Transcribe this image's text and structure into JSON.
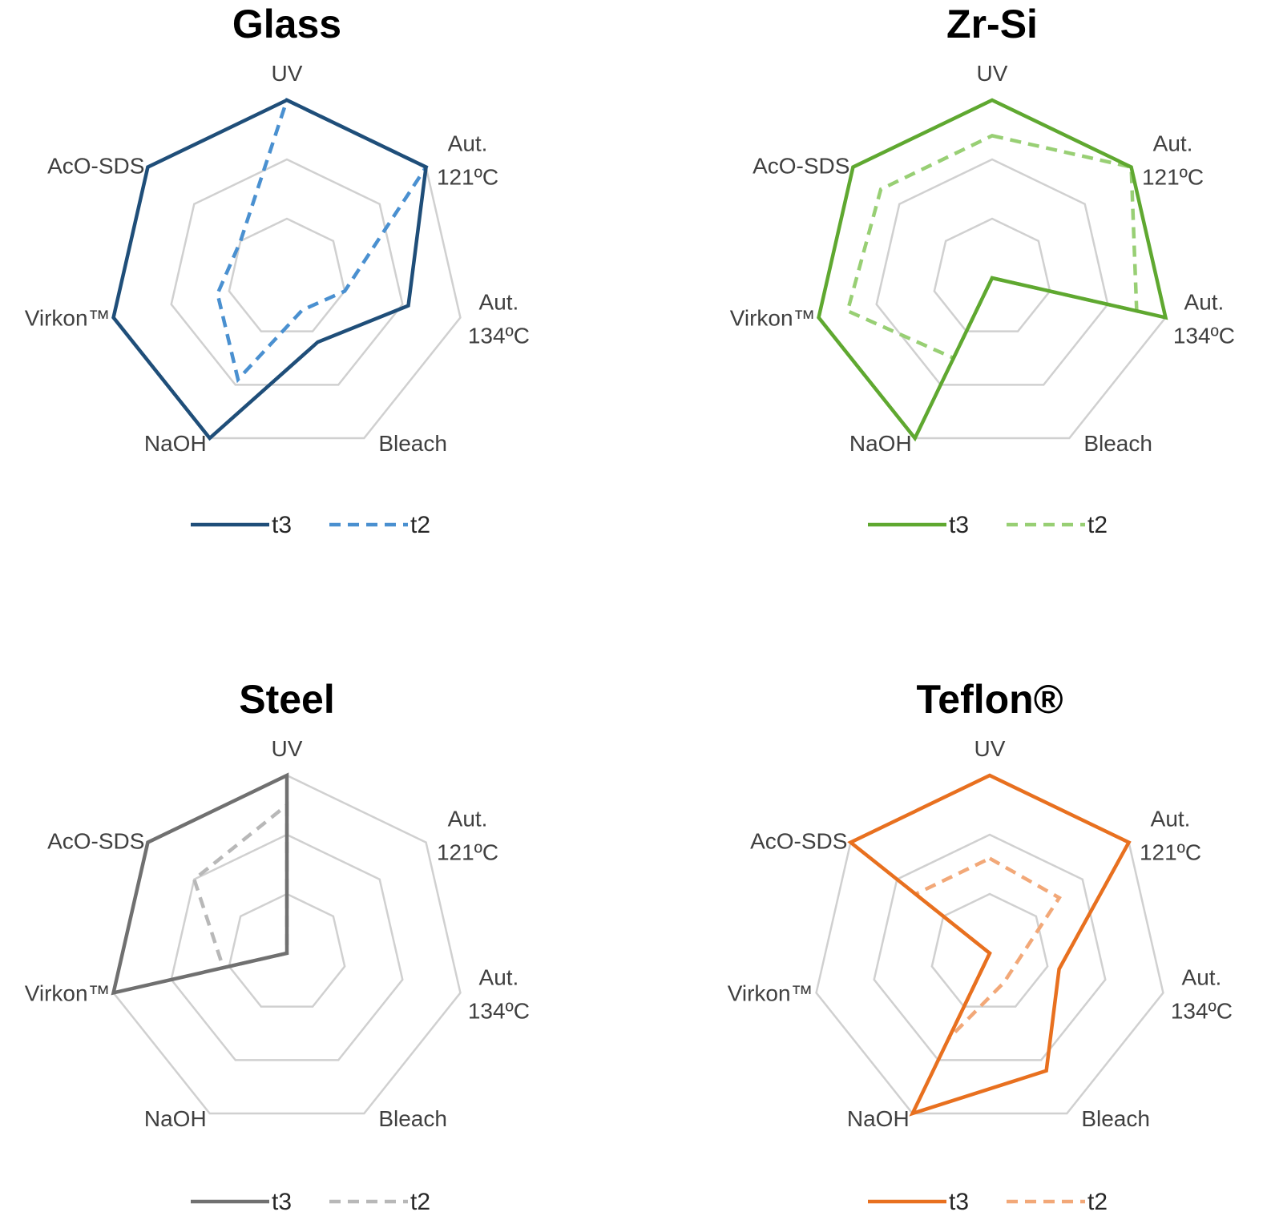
{
  "chart_data": [
    {
      "type": "radar",
      "title": "Glass",
      "axes": [
        "UV",
        "Aut. 121ºC",
        "Aut. 134ºC",
        "Bleach",
        "NaOH",
        "Virkon™",
        "AcO-SDS"
      ],
      "range": [
        0,
        3
      ],
      "grid_levels": [
        1,
        2,
        3
      ],
      "series": [
        {
          "name": "t3",
          "style": "solid",
          "color": "#1f4e79",
          "values": [
            3,
            3,
            2.1,
            1.2,
            3,
            3,
            3
          ]
        },
        {
          "name": "t2",
          "style": "dashed",
          "color": "#4a90d0",
          "values": [
            3,
            3,
            1,
            0.6,
            1.9,
            1.2,
            1
          ]
        }
      ]
    },
    {
      "type": "radar",
      "title": "Zr-Si",
      "axes": [
        "UV",
        "Aut. 121ºC",
        "Aut. 134ºC",
        "Bleach",
        "NaOH",
        "Virkon™",
        "AcO-SDS"
      ],
      "range": [
        0,
        3
      ],
      "grid_levels": [
        1,
        2,
        3
      ],
      "series": [
        {
          "name": "t3",
          "style": "solid",
          "color": "#5fa830",
          "values": [
            3,
            3,
            3,
            0,
            3,
            3,
            3
          ]
        },
        {
          "name": "t2",
          "style": "dashed",
          "color": "#98cf74",
          "values": [
            2.4,
            3,
            2.5,
            0,
            1.5,
            2.5,
            2.4
          ]
        }
      ]
    },
    {
      "type": "radar",
      "title": "Steel",
      "axes": [
        "UV",
        "Aut. 121ºC",
        "Aut. 134ºC",
        "Bleach",
        "NaOH",
        "Virkon™",
        "AcO-SDS"
      ],
      "range": [
        0,
        3
      ],
      "grid_levels": [
        1,
        2,
        3
      ],
      "series": [
        {
          "name": "t3",
          "style": "solid",
          "color": "#707070",
          "values": [
            3,
            0,
            0,
            0,
            0,
            3,
            3
          ]
        },
        {
          "name": "t2",
          "style": "dashed",
          "color": "#b8b8b8",
          "values": [
            2.5,
            0,
            0,
            0,
            0,
            1.1,
            2
          ]
        }
      ]
    },
    {
      "type": "radar",
      "title": "Teflon®",
      "axes": [
        "UV",
        "Aut. 121ºC",
        "Aut. 134ºC",
        "Bleach",
        "NaOH",
        "Virkon™",
        "AcO-SDS"
      ],
      "range": [
        0,
        3
      ],
      "grid_levels": [
        1,
        2,
        3
      ],
      "series": [
        {
          "name": "t3",
          "style": "solid",
          "color": "#e8701f",
          "values": [
            3,
            3,
            1.2,
            2.2,
            3,
            0,
            3
          ]
        },
        {
          "name": "t2",
          "style": "dashed",
          "color": "#f2a878",
          "values": [
            1.6,
            1.5,
            0.5,
            0.55,
            1.6,
            0,
            1.6
          ]
        }
      ]
    }
  ],
  "legend": {
    "t3": "t3",
    "t2": "t2"
  }
}
